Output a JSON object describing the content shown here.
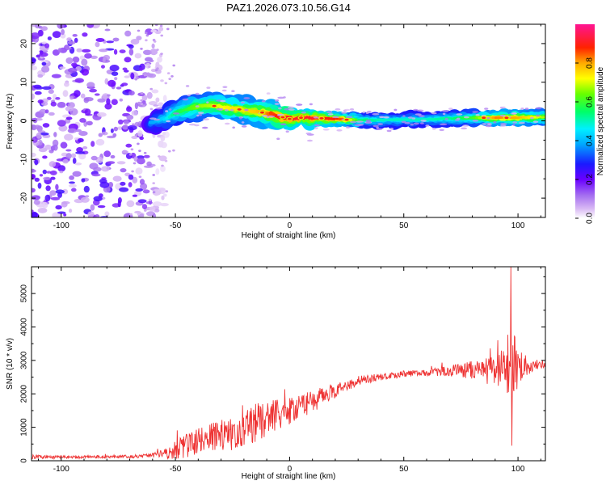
{
  "chart_data": [
    {
      "type": "heatmap",
      "title": "PAZ1.2026.073.10.56.G14",
      "xlabel": "Height of straight line (km)",
      "ylabel": "Frequency (Hz)",
      "xlim": [
        -113,
        112
      ],
      "ylim": [
        -25,
        25
      ],
      "xticks": [
        -100,
        -50,
        0,
        50,
        100
      ],
      "yticks": [
        -20,
        -10,
        0,
        10,
        20
      ],
      "colorbar": {
        "label": "Normalized spectral amplitude",
        "range": [
          0.0,
          1.0
        ],
        "ticks": [
          "0.0",
          "0.2",
          "0.4",
          "0.6",
          "0.8"
        ],
        "colormap": [
          "#ffffff",
          "#d8b8f4",
          "#8a2be2",
          "#2200ff",
          "#00e5ff",
          "#00ff00",
          "#ffff00",
          "#ff8800",
          "#ff0000",
          "#ff1493"
        ]
      },
      "ridge": {
        "x": [
          -60,
          -55,
          -50,
          -45,
          -40,
          -35,
          -30,
          -25,
          -20,
          -15,
          -10,
          -5,
          0,
          5,
          10,
          15,
          20,
          25,
          30,
          40,
          50,
          60,
          70,
          80,
          90,
          100,
          112
        ],
        "freq": [
          -0.5,
          0.5,
          2.0,
          3.0,
          3.8,
          4.0,
          3.6,
          3.2,
          2.8,
          2.4,
          2.0,
          1.2,
          0.5,
          0.8,
          0.8,
          0.6,
          0.5,
          0.3,
          0.2,
          0.2,
          0.3,
          0.4,
          0.6,
          0.8,
          0.8,
          0.8,
          1.0
        ],
        "amplitude": [
          0.35,
          0.4,
          0.5,
          0.55,
          0.6,
          0.62,
          0.65,
          0.68,
          0.68,
          0.7,
          0.75,
          0.85,
          0.9,
          0.88,
          0.9,
          0.85,
          0.82,
          0.7,
          0.5,
          0.45,
          0.45,
          0.45,
          0.48,
          0.55,
          0.75,
          0.72,
          0.6
        ],
        "hotspots_x": [
          -33,
          -22,
          -12,
          -3,
          0,
          5,
          14,
          25,
          85,
          95
        ]
      },
      "noise_region_x": [
        -113,
        -60
      ]
    },
    {
      "type": "line",
      "xlabel": "Height of straight line (km)",
      "ylabel": "SNR (10 * v/v)",
      "xlim": [
        -113,
        112
      ],
      "ylim": [
        0,
        5800
      ],
      "xticks": [
        -100,
        -50,
        0,
        50,
        100
      ],
      "yticks": [
        0,
        1000,
        2000,
        3000,
        4000,
        5000
      ],
      "series": [
        {
          "name": "SNR",
          "color": "#ee3333",
          "x": [
            -113,
            -100,
            -90,
            -80,
            -70,
            -62,
            -55,
            -50,
            -45,
            -40,
            -35,
            -30,
            -25,
            -20,
            -15,
            -10,
            -5,
            0,
            5,
            10,
            15,
            20,
            25,
            30,
            35,
            40,
            45,
            50,
            55,
            60,
            65,
            70,
            75,
            80,
            85,
            90,
            95,
            98,
            100,
            105,
            112
          ],
          "y": [
            120,
            110,
            110,
            120,
            130,
            150,
            220,
            300,
            450,
            600,
            700,
            750,
            800,
            950,
            1100,
            1250,
            1350,
            1500,
            1650,
            1750,
            1950,
            2100,
            2250,
            2400,
            2450,
            2500,
            2550,
            2600,
            2620,
            2630,
            2650,
            2680,
            2700,
            2720,
            2750,
            2750,
            2700,
            2750,
            2780,
            2800,
            2850
          ],
          "noise": [
            60,
            50,
            45,
            45,
            50,
            60,
            120,
            300,
            350,
            400,
            420,
            450,
            500,
            550,
            600,
            550,
            480,
            420,
            380,
            320,
            280,
            220,
            170,
            140,
            120,
            110,
            100,
            90,
            90,
            110,
            130,
            170,
            220,
            280,
            350,
            450,
            700,
            1100,
            700,
            200,
            120
          ],
          "peak": {
            "x": 96.8,
            "y": 5800
          },
          "dip": {
            "x": 97.4,
            "y": 450
          }
        }
      ]
    }
  ]
}
